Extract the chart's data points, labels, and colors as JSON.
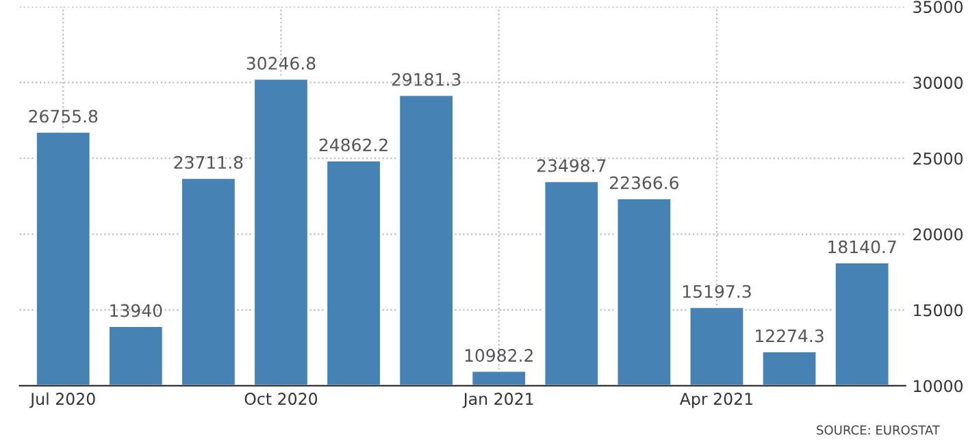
{
  "chart_data": {
    "type": "bar",
    "categories": [
      "Jul 2020",
      null,
      null,
      "Oct 2020",
      null,
      null,
      "Jan 2021",
      null,
      null,
      "Apr 2021",
      null,
      null
    ],
    "values": [
      26755.8,
      13940,
      23711.8,
      30246.8,
      24862.2,
      29181.3,
      10982.2,
      23498.7,
      22366.6,
      15197.3,
      12274.3,
      18140.7
    ],
    "color": "#4682b4",
    "ylim": [
      10000,
      35000
    ],
    "yticks": [
      10000,
      15000,
      20000,
      25000,
      30000,
      35000
    ],
    "grid": true,
    "data_labels": true,
    "annotations": [
      "SOURCE: EUROSTAT"
    ]
  }
}
